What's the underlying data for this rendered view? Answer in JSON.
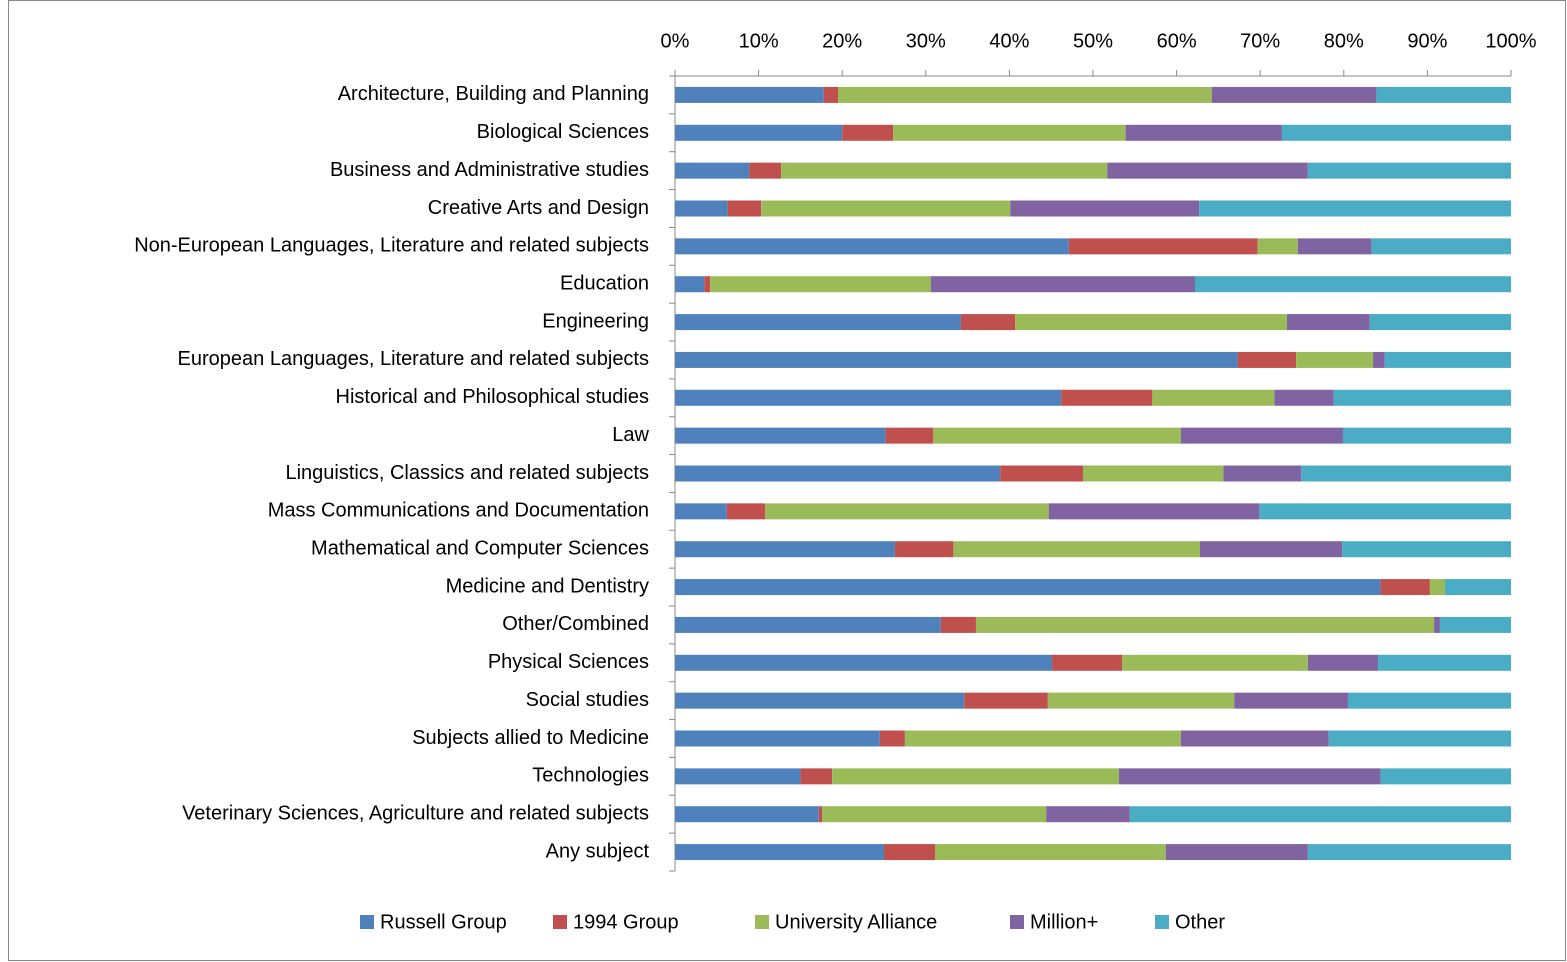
{
  "chart_data": {
    "type": "stacked-bar-horizontal",
    "categories": [
      "Architecture, Building and Planning",
      "Biological Sciences",
      "Business and Administrative studies",
      "Creative Arts and Design",
      "Non-European Languages, Literature and related subjects",
      "Education",
      "Engineering",
      "European Languages, Literature and related subjects",
      "Historical and Philosophical studies",
      "Law",
      "Linguistics, Classics and related subjects",
      "Mass Communications and Documentation",
      "Mathematical and Computer Sciences",
      "Medicine and Dentistry",
      "Other/Combined",
      "Physical Sciences",
      "Social studies",
      "Subjects allied to Medicine",
      "Technologies",
      "Veterinary Sciences, Agriculture and related subjects",
      "Any subject"
    ],
    "series": [
      {
        "name": "Russell Group",
        "color": "#4f81bd",
        "values": [
          17.8,
          20.0,
          8.9,
          6.3,
          47.1,
          3.5,
          34.2,
          67.3,
          46.2,
          25.2,
          38.9,
          6.2,
          26.3,
          84.4,
          31.8,
          45.1,
          34.6,
          24.5,
          15.0,
          17.2,
          25.0
        ]
      },
      {
        "name": "1994 Group",
        "color": "#c0504d",
        "values": [
          1.7,
          6.1,
          3.8,
          4.0,
          22.6,
          0.7,
          6.5,
          7.0,
          10.9,
          5.7,
          9.9,
          4.6,
          7.0,
          5.9,
          4.2,
          8.4,
          10.0,
          3.0,
          3.8,
          0.4,
          6.1
        ]
      },
      {
        "name": "University Alliance",
        "color": "#9bbb59",
        "values": [
          44.7,
          27.8,
          39.0,
          29.8,
          4.8,
          26.4,
          32.5,
          9.2,
          14.6,
          29.6,
          16.8,
          33.9,
          29.5,
          1.8,
          54.8,
          22.2,
          22.3,
          33.0,
          34.3,
          26.8,
          27.6
        ]
      },
      {
        "name": "Million+",
        "color": "#8064a2",
        "values": [
          19.7,
          18.7,
          24.0,
          22.6,
          8.8,
          31.6,
          9.9,
          1.4,
          7.1,
          19.4,
          9.3,
          25.2,
          17.0,
          0,
          0.7,
          8.4,
          13.6,
          17.7,
          31.3,
          10.0,
          17.0
        ]
      },
      {
        "name": "Other",
        "color": "#4bacc6",
        "values": [
          16.1,
          27.4,
          24.3,
          37.3,
          16.7,
          37.8,
          16.9,
          15.1,
          21.2,
          20.1,
          25.1,
          30.1,
          20.2,
          7.9,
          8.5,
          15.9,
          19.5,
          21.8,
          15.6,
          45.6,
          24.3
        ]
      }
    ],
    "xlim": [
      0,
      100
    ],
    "xticks": [
      {
        "value": 0,
        "label": "0%"
      },
      {
        "value": 10,
        "label": "10%"
      },
      {
        "value": 20,
        "label": "20%"
      },
      {
        "value": 30,
        "label": "30%"
      },
      {
        "value": 40,
        "label": "40%"
      },
      {
        "value": 50,
        "label": "50%"
      },
      {
        "value": 60,
        "label": "60%"
      },
      {
        "value": 70,
        "label": "70%"
      },
      {
        "value": 80,
        "label": "80%"
      },
      {
        "value": 90,
        "label": "90%"
      },
      {
        "value": 100,
        "label": "100%"
      }
    ],
    "legend": "bottom",
    "grid": false
  }
}
